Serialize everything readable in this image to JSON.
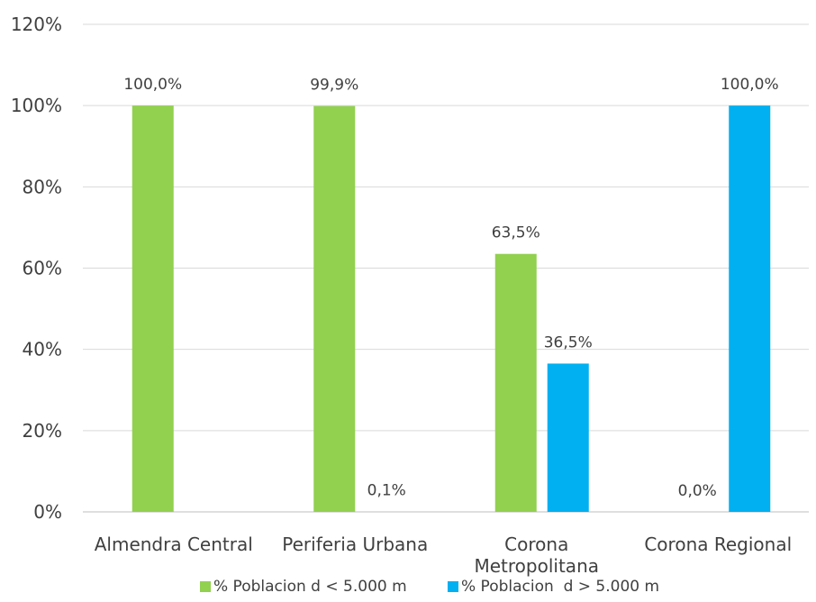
{
  "chart_data": {
    "type": "bar",
    "title": "",
    "xlabel": "",
    "ylabel": "",
    "categories": [
      "Almendra Central",
      "Periferia Urbana",
      "Corona Metropolitana",
      "Corona Regional"
    ],
    "series": [
      {
        "name": "% Poblacion d < 5.000 m",
        "color": "#92D050",
        "values": [
          100.0,
          99.9,
          63.5,
          0.0
        ],
        "labels": [
          "100,0%",
          "99,9%",
          "63,5%",
          ""
        ]
      },
      {
        "name": "% Poblacion  d > 5.000 m",
        "color": "#00B0F0",
        "values": [
          0.0,
          0.1,
          36.5,
          100.0
        ],
        "labels": [
          "",
          "0,1%",
          "36,5%",
          "100,0%"
        ]
      }
    ],
    "zero_label": "0,0%",
    "ylim": [
      0,
      120
    ],
    "yticks": [
      0,
      20,
      40,
      60,
      80,
      100,
      120
    ],
    "ytick_labels": [
      "0%",
      "20%",
      "40%",
      "60%",
      "80%",
      "100%",
      "120%"
    ],
    "grid": true,
    "legend_position": "bottom"
  }
}
